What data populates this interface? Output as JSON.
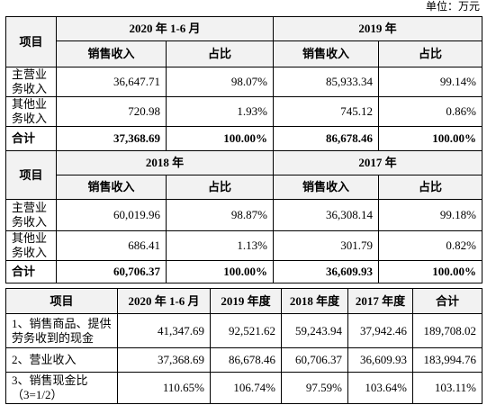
{
  "unit": "单位：万元",
  "table1": {
    "blocks": [
      {
        "item": "项目",
        "periods": [
          "2020 年 1-6 月",
          "2019 年"
        ],
        "subheaders": [
          "销售收入",
          "占比",
          "销售收入",
          "占比"
        ],
        "rows": [
          [
            "主营业务收入",
            "36,647.71",
            "98.07%",
            "85,933.34",
            "99.14%"
          ],
          [
            "其他业务收入",
            "720.98",
            "1.93%",
            "745.12",
            "0.86%"
          ],
          [
            "合计",
            "37,368.69",
            "100.00%",
            "86,678.46",
            "100.00%"
          ]
        ]
      },
      {
        "item": "项目",
        "periods": [
          "2018 年",
          "2017 年"
        ],
        "subheaders": [
          "销售收入",
          "占比",
          "销售收入",
          "占比"
        ],
        "rows": [
          [
            "主营业务收入",
            "60,019.96",
            "98.87%",
            "36,308.14",
            "99.18%"
          ],
          [
            "其他业务收入",
            "686.41",
            "1.13%",
            "301.79",
            "0.82%"
          ],
          [
            "合计",
            "60,706.37",
            "100.00%",
            "36,609.93",
            "100.00%"
          ]
        ]
      }
    ]
  },
  "table2": {
    "header": [
      "项目",
      "2020 年 1-6 月",
      "2019 年度",
      "2018 年度",
      "2017 年度",
      "合计"
    ],
    "rows": [
      [
        "1、销售商品、提供劳务收到的现金",
        "41,347.69",
        "92,521.62",
        "59,243.94",
        "37,942.46",
        "189,708.02"
      ],
      [
        "2、营业收入",
        "37,368.69",
        "86,678.46",
        "60,706.37",
        "36,609.93",
        "183,994.76"
      ],
      [
        "3、销售现金比（3=1/2）",
        "110.65%",
        "106.74%",
        "97.59%",
        "103.64%",
        "103.11%"
      ]
    ]
  }
}
